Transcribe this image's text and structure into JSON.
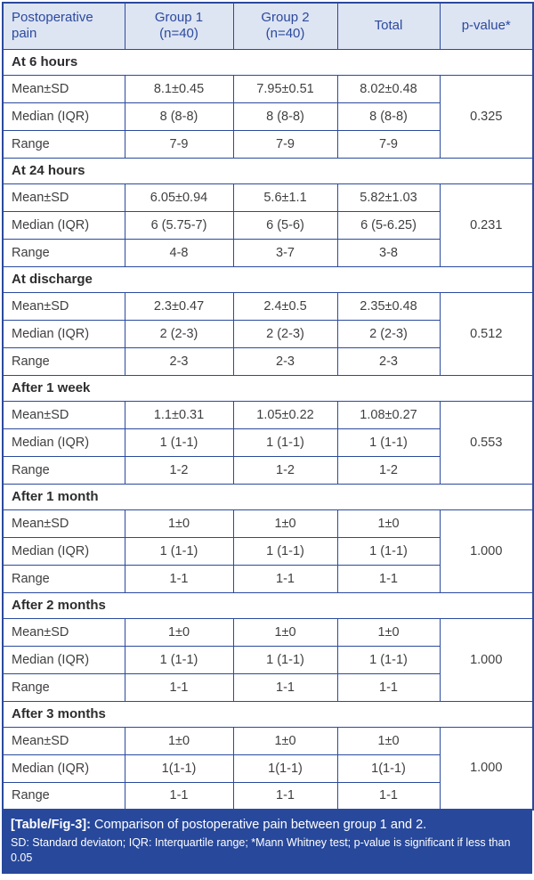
{
  "colors": {
    "accent_blue": "#2b4a9e",
    "header_bg": "#dde4f2",
    "footer_bg": "#27489b",
    "body_text": "#3f3f3f",
    "footer_text": "#ffffff"
  },
  "table": {
    "columns": [
      "Postoperative\npain",
      "Group 1\n(n=40)",
      "Group 2\n(n=40)",
      "Total",
      "p-value*"
    ],
    "row_labels": [
      "Mean±SD",
      "Median (IQR)",
      "Range"
    ],
    "sections": [
      {
        "title": "At 6 hours",
        "rows": [
          [
            "Mean±SD",
            "8.1±0.45",
            "7.95±0.51",
            "8.02±0.48"
          ],
          [
            "Median (IQR)",
            "8 (8-8)",
            "8 (8-8)",
            "8 (8-8)"
          ],
          [
            "Range",
            "7-9",
            "7-9",
            "7-9"
          ]
        ],
        "p_value": "0.325"
      },
      {
        "title": "At 24 hours",
        "rows": [
          [
            "Mean±SD",
            "6.05±0.94",
            "5.6±1.1",
            "5.82±1.03"
          ],
          [
            "Median (IQR)",
            "6 (5.75-7)",
            "6 (5-6)",
            "6 (5-6.25)"
          ],
          [
            "Range",
            "4-8",
            "3-7",
            "3-8"
          ]
        ],
        "p_value": "0.231"
      },
      {
        "title": "At discharge",
        "rows": [
          [
            "Mean±SD",
            "2.3±0.47",
            "2.4±0.5",
            "2.35±0.48"
          ],
          [
            "Median (IQR)",
            "2 (2-3)",
            "2 (2-3)",
            "2 (2-3)"
          ],
          [
            "Range",
            "2-3",
            "2-3",
            "2-3"
          ]
        ],
        "p_value": "0.512"
      },
      {
        "title": "After 1 week",
        "rows": [
          [
            "Mean±SD",
            "1.1±0.31",
            "1.05±0.22",
            "1.08±0.27"
          ],
          [
            "Median (IQR)",
            "1 (1-1)",
            "1 (1-1)",
            "1 (1-1)"
          ],
          [
            "Range",
            "1-2",
            "1-2",
            "1-2"
          ]
        ],
        "p_value": "0.553"
      },
      {
        "title": "After 1 month",
        "rows": [
          [
            "Mean±SD",
            "1±0",
            "1±0",
            "1±0"
          ],
          [
            "Median (IQR)",
            "1 (1-1)",
            "1 (1-1)",
            "1 (1-1)"
          ],
          [
            "Range",
            "1-1",
            "1-1",
            "1-1"
          ]
        ],
        "p_value": "1.000"
      },
      {
        "title": "After 2 months",
        "rows": [
          [
            "Mean±SD",
            "1±0",
            "1±0",
            "1±0"
          ],
          [
            "Median (IQR)",
            "1 (1-1)",
            "1 (1-1)",
            "1 (1-1)"
          ],
          [
            "Range",
            "1-1",
            "1-1",
            "1-1"
          ]
        ],
        "p_value": "1.000"
      },
      {
        "title": "After 3 months",
        "rows": [
          [
            "Mean±SD",
            "1±0",
            "1±0",
            "1±0"
          ],
          [
            "Median (IQR)",
            "1(1-1)",
            "1(1-1)",
            "1(1-1)"
          ],
          [
            "Range",
            "1-1",
            "1-1",
            "1-1"
          ]
        ],
        "p_value": "1.000"
      }
    ]
  },
  "footer": {
    "label": "[Table/Fig-3]:",
    "caption": "Comparison of postoperative pain between group 1 and 2.",
    "note": "SD: Standard deviaton; IQR: Interquartile range; *Mann Whitney test; p-value is significant if less than 0.05"
  }
}
